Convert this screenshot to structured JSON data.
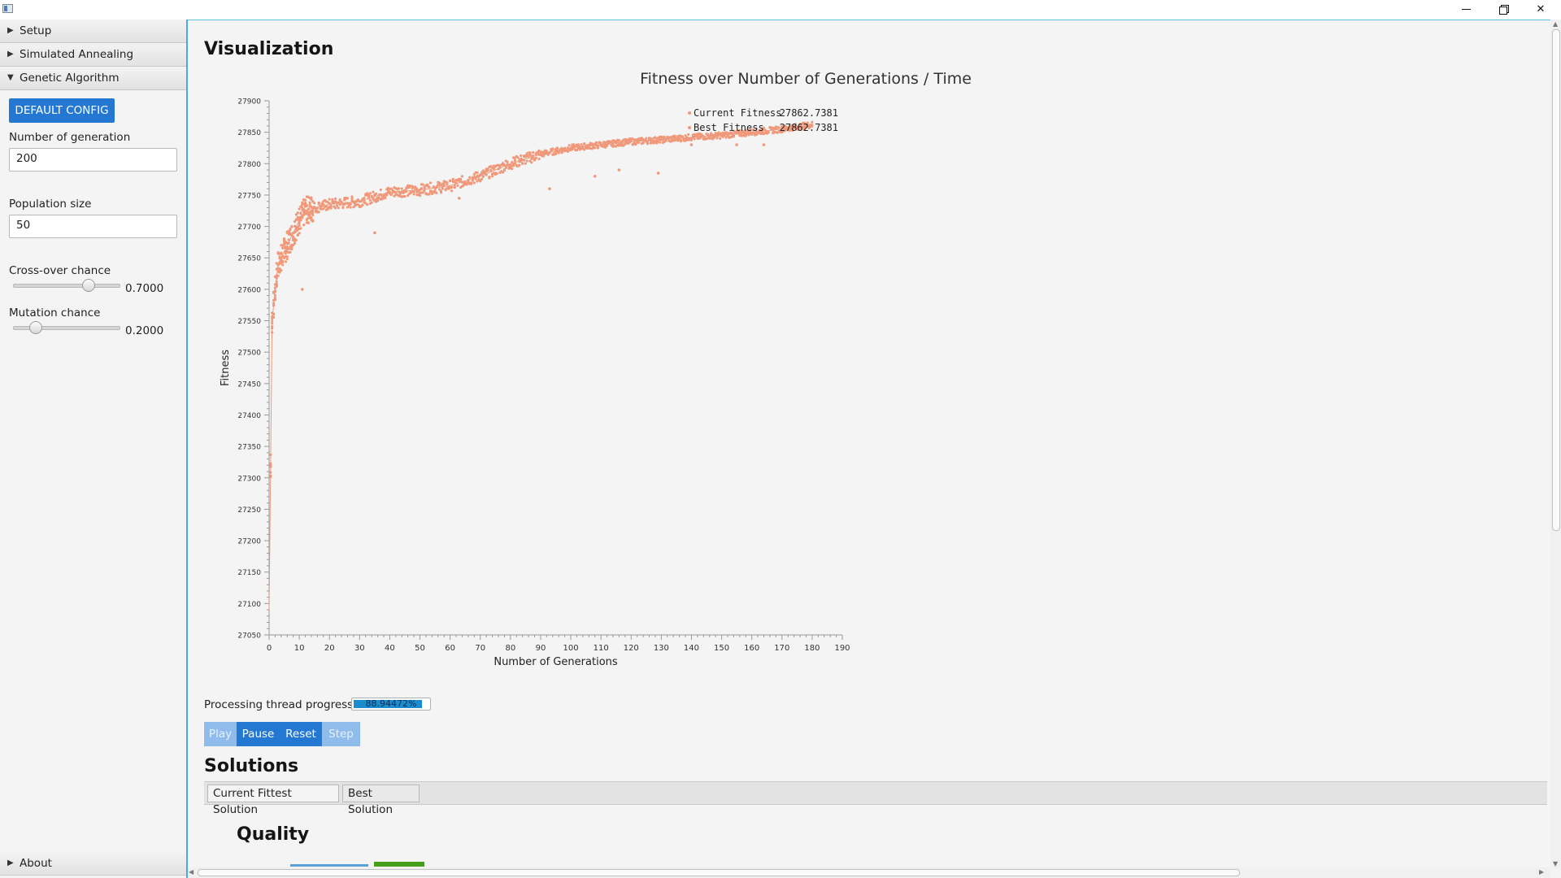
{
  "sidebar": {
    "sections": {
      "setup": "Setup",
      "simulated_annealing": "Simulated Annealing",
      "genetic_algorithm": "Genetic Algorithm",
      "about": "About"
    },
    "default_config_label": "DEFAULT CONFIG",
    "num_generations": {
      "label": "Number of generation",
      "value": "200"
    },
    "population_size": {
      "label": "Population size",
      "value": "50"
    },
    "crossover": {
      "label": "Cross-over chance",
      "value_text": "0.7000",
      "value": 0.7
    },
    "mutation": {
      "label": "Mutation chance",
      "value_text": "0.2000",
      "value": 0.2
    }
  },
  "main": {
    "visualization_title": "Visualization",
    "progress_label": "Processing thread progress:",
    "progress_text": "88.94472%",
    "progress_value": 0.8894,
    "controls": {
      "play": "Play",
      "pause": "Pause",
      "reset": "Reset",
      "step": "Step"
    },
    "solutions_title": "Solutions",
    "tabs": [
      "Current Fittest Solution",
      "Best Solution"
    ],
    "quality_title": "Quality"
  },
  "chart_data": {
    "type": "scatter",
    "title": "Fitness over Number of Generations / Time",
    "xlabel": "Number of Generations",
    "ylabel": "Fitness",
    "xlim": [
      0,
      190
    ],
    "ylim": [
      27050,
      27900
    ],
    "x_ticks": [
      0,
      10,
      20,
      30,
      40,
      50,
      60,
      70,
      80,
      90,
      100,
      110,
      120,
      130,
      140,
      150,
      160,
      170,
      180,
      190
    ],
    "y_ticks": [
      27050,
      27100,
      27150,
      27200,
      27250,
      27300,
      27350,
      27400,
      27450,
      27500,
      27550,
      27600,
      27650,
      27700,
      27750,
      27800,
      27850,
      27900
    ],
    "legend": [
      {
        "name": "Current Fitness",
        "value": "27862.7381"
      },
      {
        "name": "Best Fitness",
        "value": "27862.7381"
      }
    ],
    "color": "#f0997a",
    "trend": [
      [
        0,
        27090
      ],
      [
        1,
        27550
      ],
      [
        2,
        27600
      ],
      [
        3,
        27640
      ],
      [
        5,
        27660
      ],
      [
        8,
        27690
      ],
      [
        10,
        27710
      ],
      [
        12,
        27725
      ],
      [
        15,
        27730
      ],
      [
        20,
        27735
      ],
      [
        30,
        27740
      ],
      [
        40,
        27755
      ],
      [
        50,
        27758
      ],
      [
        60,
        27765
      ],
      [
        70,
        27780
      ],
      [
        80,
        27800
      ],
      [
        90,
        27815
      ],
      [
        100,
        27825
      ],
      [
        110,
        27830
      ],
      [
        120,
        27835
      ],
      [
        130,
        27838
      ],
      [
        140,
        27842
      ],
      [
        150,
        27845
      ],
      [
        160,
        27850
      ],
      [
        170,
        27855
      ],
      [
        180,
        27862
      ]
    ],
    "outliers": [
      [
        11,
        27600
      ],
      [
        35,
        27690
      ],
      [
        63,
        27745
      ],
      [
        93,
        27760
      ],
      [
        108,
        27780
      ],
      [
        116,
        27790
      ],
      [
        129,
        27785
      ],
      [
        140,
        27830
      ],
      [
        155,
        27830
      ],
      [
        164,
        27830
      ]
    ]
  }
}
